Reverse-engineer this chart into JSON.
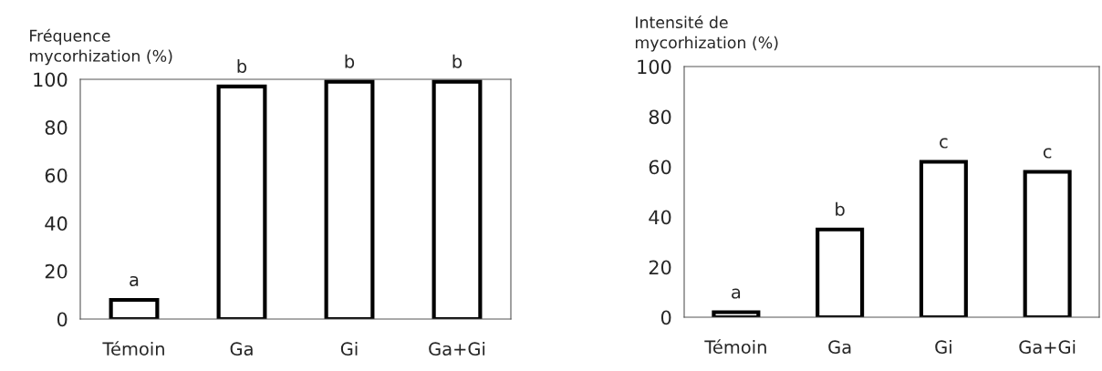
{
  "chart_data": [
    {
      "type": "bar",
      "ylabel": "Fréquence\nmycorhization (%)",
      "categories": [
        "Témoin",
        "Ga",
        "Gi",
        "Ga+Gi"
      ],
      "values": [
        8,
        97,
        99,
        99
      ],
      "color": "#ffffff",
      "ylim": [
        0,
        100
      ],
      "yticks": [
        0,
        20,
        40,
        60,
        80,
        100
      ],
      "grid": false,
      "legend": false,
      "annotations": [
        {
          "text": "a",
          "x": "Témoin",
          "y": 8
        },
        {
          "text": "b",
          "x": "Ga",
          "y": 97
        },
        {
          "text": "b",
          "x": "Gi",
          "y": 99
        },
        {
          "text": "b",
          "x": "Ga+Gi",
          "y": 99
        }
      ]
    },
    {
      "type": "bar",
      "ylabel": "Intensité de\nmycorhization (%)",
      "categories": [
        "Témoin",
        "Ga",
        "Gi",
        "Ga+Gi"
      ],
      "values": [
        2,
        35,
        62,
        58
      ],
      "color": "#ffffff",
      "ylim": [
        0,
        100
      ],
      "yticks": [
        0,
        20,
        40,
        60,
        80,
        100
      ],
      "grid": false,
      "legend": false,
      "annotations": [
        {
          "text": "a",
          "x": "Témoin",
          "y": 2
        },
        {
          "text": "b",
          "x": "Ga",
          "y": 35
        },
        {
          "text": "c",
          "x": "Gi",
          "y": 62
        },
        {
          "text": "c",
          "x": "Ga+Gi",
          "y": 58
        }
      ]
    }
  ]
}
